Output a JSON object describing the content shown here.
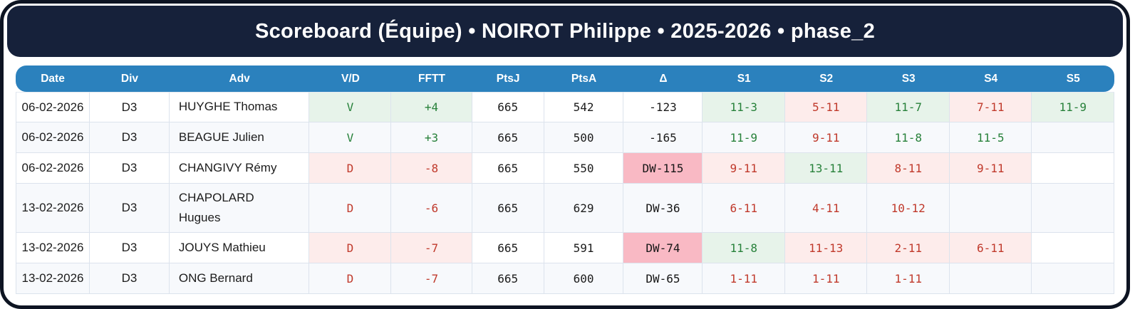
{
  "title": "Scoreboard (Équipe) • NOIROT Philippe • 2025-2026 • phase_2",
  "table": {
    "columns": [
      "Date",
      "Div",
      "Adv",
      "V/D",
      "FFTT",
      "PtsJ",
      "PtsA",
      "Δ",
      "S1",
      "S2",
      "S3",
      "S4",
      "S5"
    ],
    "rows": [
      {
        "date": "06-02-2026",
        "div": "D3",
        "adv": "HUYGHE Thomas",
        "vd": "V",
        "fftt": "+4",
        "ptsj": "665",
        "ptsa": "542",
        "delta": "-123",
        "delta_dw": false,
        "result": "win",
        "sets": [
          {
            "score": "11-3",
            "outcome": "win"
          },
          {
            "score": "5-11",
            "outcome": "loss"
          },
          {
            "score": "11-7",
            "outcome": "win"
          },
          {
            "score": "7-11",
            "outcome": "loss"
          },
          {
            "score": "11-9",
            "outcome": "win"
          }
        ]
      },
      {
        "date": "06-02-2026",
        "div": "D3",
        "adv": "BEAGUE Julien",
        "vd": "V",
        "fftt": "+3",
        "ptsj": "665",
        "ptsa": "500",
        "delta": "-165",
        "delta_dw": false,
        "result": "win",
        "sets": [
          {
            "score": "11-9",
            "outcome": "win"
          },
          {
            "score": "9-11",
            "outcome": "loss"
          },
          {
            "score": "11-8",
            "outcome": "win"
          },
          {
            "score": "11-5",
            "outcome": "win"
          },
          null
        ]
      },
      {
        "date": "06-02-2026",
        "div": "D3",
        "adv": "CHANGIVY Rémy",
        "vd": "D",
        "fftt": "-8",
        "ptsj": "665",
        "ptsa": "550",
        "delta": "DW-115",
        "delta_dw": true,
        "result": "loss",
        "sets": [
          {
            "score": "9-11",
            "outcome": "loss"
          },
          {
            "score": "13-11",
            "outcome": "win"
          },
          {
            "score": "8-11",
            "outcome": "loss"
          },
          {
            "score": "9-11",
            "outcome": "loss"
          },
          null
        ]
      },
      {
        "date": "13-02-2026",
        "div": "D3",
        "adv": "CHAPOLARD Hugues",
        "vd": "D",
        "fftt": "-6",
        "ptsj": "665",
        "ptsa": "629",
        "delta": "DW-36",
        "delta_dw": true,
        "result": "loss",
        "sets": [
          {
            "score": "6-11",
            "outcome": "loss"
          },
          {
            "score": "4-11",
            "outcome": "loss"
          },
          {
            "score": "10-12",
            "outcome": "loss"
          },
          null,
          null
        ]
      },
      {
        "date": "13-02-2026",
        "div": "D3",
        "adv": "JOUYS Mathieu",
        "vd": "D",
        "fftt": "-7",
        "ptsj": "665",
        "ptsa": "591",
        "delta": "DW-74",
        "delta_dw": true,
        "result": "loss",
        "sets": [
          {
            "score": "11-8",
            "outcome": "win"
          },
          {
            "score": "11-13",
            "outcome": "loss"
          },
          {
            "score": "2-11",
            "outcome": "loss"
          },
          {
            "score": "6-11",
            "outcome": "loss"
          },
          null
        ]
      },
      {
        "date": "13-02-2026",
        "div": "D3",
        "adv": "ONG Bernard",
        "vd": "D",
        "fftt": "-7",
        "ptsj": "665",
        "ptsa": "600",
        "delta": "DW-65",
        "delta_dw": true,
        "result": "loss",
        "sets": [
          {
            "score": "1-11",
            "outcome": "loss"
          },
          {
            "score": "1-11",
            "outcome": "loss"
          },
          {
            "score": "1-11",
            "outcome": "loss"
          },
          null,
          null
        ]
      }
    ]
  },
  "colors": {
    "frame": "#0d1422",
    "title_bg": "#16213a",
    "header_bg": "#2b81bd",
    "win_text": "#27813a",
    "loss_text": "#c0392b",
    "win_bg": "#e7f3ea",
    "loss_bg": "#fdeceb",
    "dw_bg": "#f9b9c4",
    "alt_row_bg": "#f7f9fc"
  }
}
